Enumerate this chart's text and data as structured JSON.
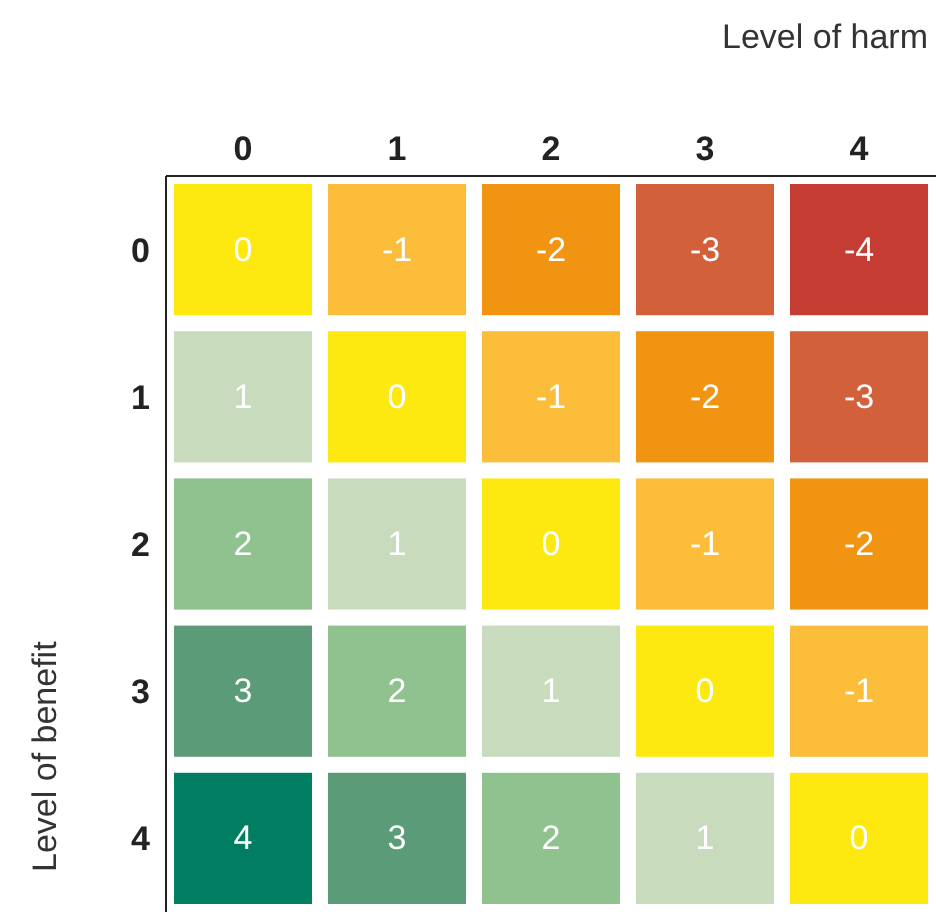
{
  "chart_data": {
    "type": "heatmap",
    "xlabel": "Level of harm",
    "ylabel": "Level of benefit",
    "categories": [
      "0",
      "1",
      "2",
      "3",
      "4"
    ],
    "y_categories": [
      "0",
      "1",
      "2",
      "3",
      "4"
    ],
    "cells": [
      [
        0,
        -1,
        -2,
        -3,
        -4
      ],
      [
        1,
        0,
        -1,
        -2,
        -3
      ],
      [
        2,
        1,
        0,
        -1,
        -2
      ],
      [
        3,
        2,
        1,
        0,
        -1
      ],
      [
        4,
        3,
        2,
        1,
        0
      ]
    ],
    "data_labels": true,
    "cell_labels": [
      [
        "0",
        "-1",
        "-2",
        "-3",
        "-4"
      ],
      [
        "1",
        "0",
        "-1",
        "-2",
        "-3"
      ],
      [
        "2",
        "1",
        "0",
        "-1",
        "-2"
      ],
      [
        "3",
        "2",
        "1",
        "0",
        "-1"
      ],
      [
        "4",
        "3",
        "2",
        "1",
        "0"
      ]
    ],
    "colors": [
      "#c53d32",
      "#d2603a",
      "#f09412",
      "#fbbd3a",
      "#fde910",
      "#c8dbbd",
      "#8fc28f",
      "#5c9b78",
      "#017d62"
    ]
  }
}
